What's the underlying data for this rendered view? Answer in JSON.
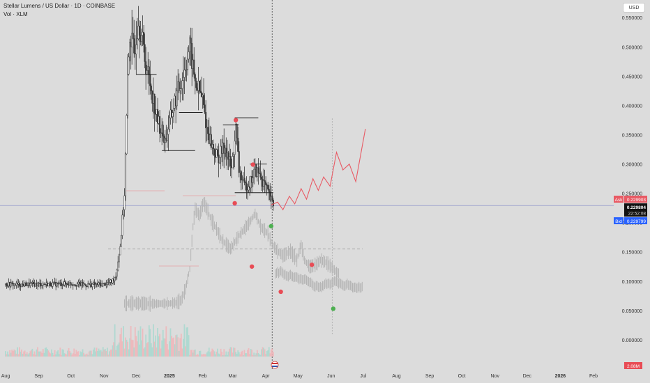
{
  "header": {
    "title": "Stellar Lumens / US Dollar · 1D · COINBASE",
    "indicator": "Vol · XLM",
    "currency_button": "USD"
  },
  "colors": {
    "background": "#dcdcdc",
    "candle": "#3a3a3a",
    "ghost_candle": "#b4b4b4",
    "projection": "#e85a64",
    "red_marker": "#e84c55",
    "green_marker": "#4caf50",
    "ask": "#e85a64",
    "bid": "#2962ff",
    "current": "#111111",
    "volume_green": "#a8d8cf",
    "volume_red": "#f0b5b8",
    "volume_badge": "#e84c55"
  },
  "chart_data": {
    "type": "candlestick",
    "ylim": [
      -0.05,
      0.58
    ],
    "y_ticks": [
      "0.550000",
      "0.500000",
      "0.450000",
      "0.400000",
      "0.350000",
      "0.300000",
      "0.250000",
      "0.200000",
      "0.150000",
      "0.100000",
      "0.050000",
      "0.000000"
    ],
    "y_tick_values": [
      0.55,
      0.5,
      0.45,
      0.4,
      0.35,
      0.3,
      0.25,
      0.2,
      0.15,
      0.1,
      0.05,
      0.0
    ],
    "x_ticks": [
      "Aug",
      "Sep",
      "Oct",
      "Nov",
      "Dec",
      "2025",
      "Feb",
      "Mar",
      "Apr",
      "May",
      "Jun",
      "Jul",
      "Aug",
      "Sep",
      "Oct",
      "Nov",
      "Dec",
      "2026",
      "Feb"
    ],
    "x_tick_dates": [
      "2024-08-01",
      "2024-09-01",
      "2024-10-01",
      "2024-11-01",
      "2024-12-01",
      "2025-01-01",
      "2025-02-01",
      "2025-03-01",
      "2025-04-01",
      "2025-05-01",
      "2025-06-01",
      "2025-07-01",
      "2025-08-01",
      "2025-09-01",
      "2025-10-01",
      "2025-11-01",
      "2025-12-01",
      "2026-01-01",
      "2026-02-01"
    ],
    "price_series": [
      [
        "2024-08-01",
        0.095
      ],
      [
        "2024-08-15",
        0.094
      ],
      [
        "2024-09-01",
        0.095
      ],
      [
        "2024-09-15",
        0.095
      ],
      [
        "2024-10-01",
        0.096
      ],
      [
        "2024-10-15",
        0.094
      ],
      [
        "2024-11-01",
        0.095
      ],
      [
        "2024-11-08",
        0.099
      ],
      [
        "2024-11-12",
        0.11
      ],
      [
        "2024-11-16",
        0.16
      ],
      [
        "2024-11-20",
        0.25
      ],
      [
        "2024-11-23",
        0.44
      ],
      [
        "2024-11-25",
        0.52
      ],
      [
        "2024-11-29",
        0.49
      ],
      [
        "2024-12-03",
        0.55
      ],
      [
        "2024-12-06",
        0.52
      ],
      [
        "2024-12-10",
        0.47
      ],
      [
        "2024-12-15",
        0.43
      ],
      [
        "2024-12-20",
        0.38
      ],
      [
        "2024-12-28",
        0.34
      ],
      [
        "2025-01-05",
        0.4
      ],
      [
        "2025-01-10",
        0.43
      ],
      [
        "2025-01-15",
        0.46
      ],
      [
        "2025-01-20",
        0.5
      ],
      [
        "2025-01-25",
        0.44
      ],
      [
        "2025-02-01",
        0.41
      ],
      [
        "2025-02-05",
        0.36
      ],
      [
        "2025-02-10",
        0.33
      ],
      [
        "2025-02-15",
        0.31
      ],
      [
        "2025-02-22",
        0.33
      ],
      [
        "2025-02-28",
        0.29
      ],
      [
        "2025-03-04",
        0.36
      ],
      [
        "2025-03-07",
        0.29
      ],
      [
        "2025-03-12",
        0.26
      ],
      [
        "2025-03-18",
        0.27
      ],
      [
        "2025-03-22",
        0.29
      ],
      [
        "2025-03-27",
        0.28
      ],
      [
        "2025-04-01",
        0.26
      ],
      [
        "2025-04-05",
        0.24
      ],
      [
        "2025-04-08",
        0.23
      ]
    ],
    "current_price": "0.229804",
    "countdown": "22:52:08",
    "ask_label": "Ask",
    "ask_price": "0.229903",
    "bid_label": "Bid",
    "bid_price": "0.229799",
    "volume_label": "2.08M",
    "support_levels": [
      {
        "value": 0.453,
        "from": "2024-12-01",
        "to": "2024-12-20"
      },
      {
        "value": 0.388,
        "from": "2025-01-10",
        "to": "2025-02-01"
      },
      {
        "value": 0.323,
        "from": "2024-12-25",
        "to": "2025-01-25"
      },
      {
        "value": 0.367,
        "from": "2025-02-20",
        "to": "2025-03-07"
      },
      {
        "value": 0.379,
        "from": "2025-03-03",
        "to": "2025-03-25"
      },
      {
        "value": 0.3,
        "from": "2025-03-17",
        "to": "2025-04-02"
      },
      {
        "value": 0.251,
        "from": "2025-03-03",
        "to": "2025-04-08"
      }
    ],
    "projection": [
      [
        "2025-04-06",
        0.23
      ],
      [
        "2025-04-12",
        0.235
      ],
      [
        "2025-04-17",
        0.222
      ],
      [
        "2025-04-23",
        0.245
      ],
      [
        "2025-04-28",
        0.232
      ],
      [
        "2025-05-04",
        0.258
      ],
      [
        "2025-05-09",
        0.24
      ],
      [
        "2025-05-15",
        0.275
      ],
      [
        "2025-05-20",
        0.255
      ],
      [
        "2025-05-25",
        0.278
      ],
      [
        "2025-05-31",
        0.262
      ],
      [
        "2025-06-06",
        0.32
      ],
      [
        "2025-06-12",
        0.29
      ],
      [
        "2025-06-18",
        0.3
      ],
      [
        "2025-06-24",
        0.27
      ],
      [
        "2025-07-03",
        0.36
      ]
    ],
    "markers": [
      {
        "color": "red",
        "date": "2025-03-04",
        "value": 0.375
      },
      {
        "color": "red",
        "date": "2025-03-20",
        "value": 0.299
      },
      {
        "color": "red",
        "date": "2025-03-03",
        "value": 0.233
      },
      {
        "color": "green",
        "date": "2025-04-06",
        "value": 0.194
      },
      {
        "color": "red",
        "date": "2025-03-19",
        "value": 0.125
      },
      {
        "color": "red",
        "date": "2025-04-15",
        "value": 0.082
      },
      {
        "color": "red",
        "date": "2025-05-14",
        "value": 0.128
      },
      {
        "color": "green",
        "date": "2025-06-03",
        "value": 0.053
      }
    ],
    "reference_lines": {
      "current_price_line": 0.229,
      "dashed_level": 0.155
    },
    "vertical_markers": [
      "2025-04-07",
      "2025-06-02"
    ]
  }
}
